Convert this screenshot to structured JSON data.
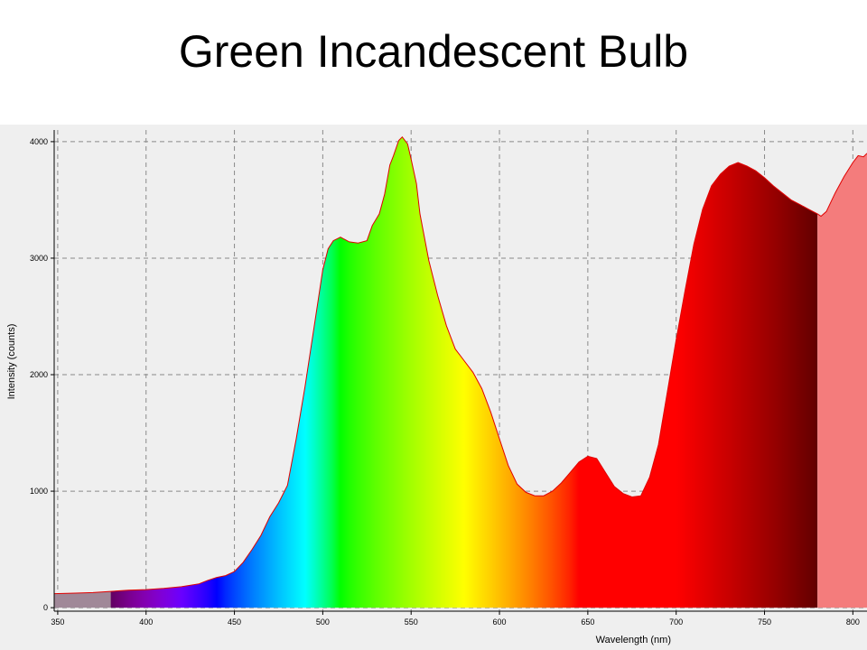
{
  "page": {
    "title": "Green Incandescent Bulb"
  },
  "chart_data": {
    "type": "area",
    "title": "Green Incandescent Bulb",
    "xlabel": "Wavelength (nm)",
    "ylabel": "Intensity (counts)",
    "xlim": [
      348,
      808
    ],
    "ylim": [
      -30,
      4100
    ],
    "xticks": [
      350,
      400,
      450,
      500,
      550,
      600,
      650,
      700,
      750,
      800
    ],
    "yticks": [
      0,
      1000,
      2000,
      3000,
      4000
    ],
    "grid": true,
    "visible_range_nm": [
      380,
      780
    ],
    "series": [
      {
        "x": [
          348,
          360,
          370,
          380,
          390,
          400,
          410,
          420,
          430,
          435,
          440,
          445,
          450,
          455,
          460,
          465,
          470,
          475,
          480,
          485,
          490,
          495,
          500,
          503,
          506,
          510,
          515,
          520,
          525,
          528,
          532,
          535,
          538,
          540,
          543,
          545,
          548,
          550,
          553,
          555,
          560,
          565,
          570,
          575,
          580,
          585,
          590,
          595,
          600,
          605,
          610,
          615,
          620,
          625,
          630,
          635,
          640,
          645,
          650,
          655,
          660,
          665,
          670,
          675,
          680,
          685,
          690,
          695,
          700,
          705,
          710,
          715,
          720,
          725,
          730,
          735,
          740,
          745,
          750,
          755,
          760,
          765,
          770,
          775,
          780,
          782,
          785,
          790,
          795,
          800,
          803,
          806,
          808
        ],
        "y": [
          120,
          125,
          130,
          140,
          150,
          155,
          165,
          180,
          205,
          235,
          260,
          275,
          310,
          390,
          500,
          620,
          780,
          900,
          1050,
          1450,
          1900,
          2400,
          2900,
          3080,
          3150,
          3180,
          3140,
          3130,
          3150,
          3280,
          3380,
          3550,
          3800,
          3880,
          4010,
          4040,
          3980,
          3850,
          3640,
          3380,
          2980,
          2680,
          2420,
          2220,
          2120,
          2020,
          1880,
          1680,
          1450,
          1220,
          1060,
          990,
          960,
          960,
          1000,
          1070,
          1160,
          1250,
          1300,
          1280,
          1160,
          1040,
          980,
          950,
          960,
          1120,
          1400,
          1850,
          2300,
          2720,
          3120,
          3420,
          3620,
          3720,
          3790,
          3820,
          3790,
          3750,
          3690,
          3620,
          3560,
          3500,
          3460,
          3420,
          3380,
          3360,
          3400,
          3560,
          3700,
          3820,
          3880,
          3870,
          3900
        ]
      }
    ]
  }
}
